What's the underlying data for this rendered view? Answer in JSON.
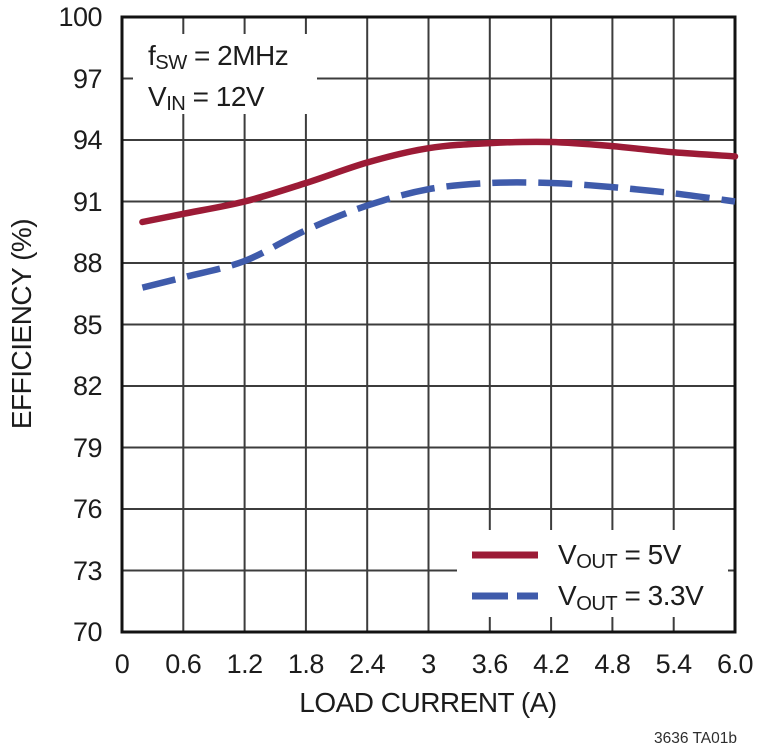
{
  "figure": {
    "caption": "3636 TA01b"
  },
  "chart_data": {
    "type": "line",
    "title": "",
    "xlabel": "LOAD CURRENT (A)",
    "ylabel": "EFFICIENCY (%)",
    "xlim": [
      0,
      6.0
    ],
    "ylim": [
      70,
      100
    ],
    "grid": true,
    "legend_position": "bottom-right",
    "x_ticks": [
      0,
      0.6,
      1.2,
      1.8,
      2.4,
      3,
      3.6,
      4.2,
      4.8,
      5.4,
      6.0
    ],
    "x_tick_labels": [
      "0",
      "0.6",
      "1.2",
      "1.8",
      "2.4",
      "3",
      "3.6",
      "4.2",
      "4.8",
      "5.4",
      "6.0"
    ],
    "y_ticks": [
      100,
      97,
      94,
      91,
      88,
      85,
      82,
      79,
      76,
      73,
      70
    ],
    "y_tick_labels": [
      "100",
      "97",
      "94",
      "91",
      "88",
      "85",
      "82",
      "79",
      "76",
      "73",
      "70"
    ],
    "annotation": {
      "line1": {
        "base": "f",
        "sub": "SW",
        "rest": " = 2MHz",
        "text": "fSW = 2MHz"
      },
      "line2": {
        "base": "V",
        "sub": "IN",
        "rest": " = 12V",
        "text": "VIN = 12V"
      }
    },
    "legend": {
      "entries": [
        {
          "base": "V",
          "sub": "OUT",
          "rest": " = 5V",
          "text": "VOUT = 5V",
          "color": "#9C1B36",
          "style": "solid"
        },
        {
          "base": "V",
          "sub": "OUT",
          "rest": " = 3.3V",
          "text": "VOUT = 3.3V",
          "color": "#3F5BAB",
          "style": "dashed"
        }
      ]
    },
    "series": [
      {
        "name": "VOUT = 5V",
        "color": "#9C1B36",
        "style": "solid",
        "x": [
          0.2,
          0.6,
          1.2,
          1.8,
          2.4,
          3.0,
          3.6,
          4.2,
          4.8,
          5.4,
          6.0
        ],
        "y": [
          90.0,
          90.4,
          91.0,
          91.9,
          92.9,
          93.6,
          93.85,
          93.9,
          93.7,
          93.4,
          93.2
        ]
      },
      {
        "name": "VOUT = 3.3V",
        "color": "#3F5BAB",
        "style": "dashed",
        "x": [
          0.2,
          0.6,
          1.2,
          1.8,
          2.4,
          3.0,
          3.6,
          4.2,
          4.8,
          5.4,
          6.0
        ],
        "y": [
          86.8,
          87.3,
          88.1,
          89.6,
          90.8,
          91.6,
          91.9,
          91.9,
          91.7,
          91.4,
          91.0
        ]
      }
    ],
    "grid_color": "#3c3c3c",
    "frame_color": "#121212",
    "text_color": "#1c1c1c"
  }
}
